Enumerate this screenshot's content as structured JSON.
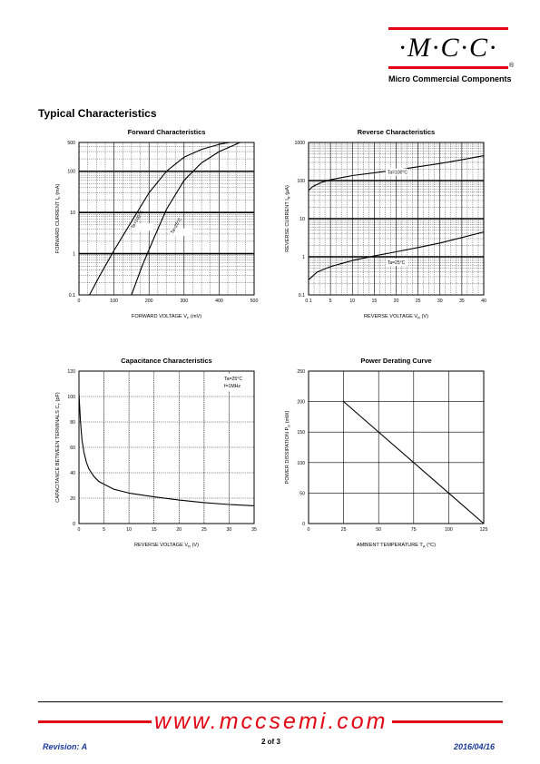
{
  "header": {
    "logo_text": "·M·C·C·",
    "logo_sub": "Micro Commercial Components",
    "reg_mark": "®",
    "accent_color": "#e30613"
  },
  "section_title": "Typical Characteristics",
  "footer": {
    "url": "www.mccsemi.com",
    "revision": "Revision: A",
    "page": "2 of 3",
    "date": "2016/04/16",
    "text_color": "#1a3a9a"
  },
  "chart_data": [
    {
      "type": "line",
      "title": "Forward    Characteristics",
      "xlabel": "FORWARD VOLTAGE",
      "xsym": "V",
      "xsub": "F",
      "xunit": "(mV)",
      "ylabel": "FORWARD CURRENT",
      "ysym": "I",
      "ysub": "F",
      "yunit": "(mA)",
      "xlim": [
        0,
        500
      ],
      "ylim": [
        0.1,
        500
      ],
      "yscale": "log",
      "xticks": [
        "0",
        "100",
        "200",
        "300",
        "400",
        "500"
      ],
      "yticks": [
        [
          "0.1",
          0.1
        ],
        [
          "1",
          1
        ],
        [
          "10",
          10
        ],
        [
          "100",
          100
        ],
        [
          "500",
          500
        ]
      ],
      "grid": true,
      "series": [
        {
          "points": [
            [
              30,
              0.1
            ],
            [
              60,
              0.3
            ],
            [
              100,
              1.2
            ],
            [
              150,
              6
            ],
            [
              200,
              30
            ],
            [
              250,
              100
            ],
            [
              300,
              220
            ],
            [
              350,
              340
            ],
            [
              400,
              450
            ],
            [
              430,
              500
            ]
          ],
          "label": "Ta=100°C",
          "label_at": [
            155,
            4
          ]
        },
        {
          "points": [
            [
              150,
              0.1
            ],
            [
              180,
              0.5
            ],
            [
              215,
              2.5
            ],
            [
              250,
              12
            ],
            [
              300,
              60
            ],
            [
              350,
              160
            ],
            [
              400,
              300
            ],
            [
              440,
              420
            ],
            [
              460,
              500
            ]
          ],
          "label": "Ta=25°C",
          "label_at": [
            268,
            3
          ]
        }
      ]
    },
    {
      "type": "line",
      "title": "Reverse    Characteristics",
      "xlabel": "REVERSE VOLTAGE",
      "xsym": "V",
      "xsub": "R",
      "xunit": "(V)",
      "ylabel": "REVERSE CURRENT",
      "ysym": "I",
      "ysub": "R",
      "yunit": "(µA)",
      "xlim": [
        0,
        40
      ],
      "ylim": [
        0.1,
        1000
      ],
      "yscale": "log",
      "xticks": [
        "0.1",
        "5",
        "10",
        "15",
        "20",
        "25",
        "30",
        "35",
        "40"
      ],
      "yticks": [
        [
          "0.1",
          0.1
        ],
        [
          "1",
          1
        ],
        [
          "10",
          10
        ],
        [
          "100",
          100
        ],
        [
          "1000",
          1000
        ]
      ],
      "grid": true,
      "series": [
        {
          "points": [
            [
              0,
              55
            ],
            [
              1,
              70
            ],
            [
              3,
              90
            ],
            [
              5,
              105
            ],
            [
              10,
              135
            ],
            [
              15,
              160
            ],
            [
              20,
              190
            ],
            [
              25,
              230
            ],
            [
              30,
              280
            ],
            [
              35,
              350
            ],
            [
              40,
              450
            ]
          ],
          "label": "Ta=100°C",
          "label_at": [
            18,
            150
          ]
        },
        {
          "points": [
            [
              0,
              0.25
            ],
            [
              2,
              0.4
            ],
            [
              5,
              0.55
            ],
            [
              10,
              0.8
            ],
            [
              15,
              1.05
            ],
            [
              20,
              1.35
            ],
            [
              25,
              1.75
            ],
            [
              30,
              2.3
            ],
            [
              35,
              3.2
            ],
            [
              40,
              4.5
            ]
          ],
          "label": "Ta=25°C",
          "label_at": [
            18,
            0.65
          ]
        }
      ]
    },
    {
      "type": "line",
      "title": "Capacitance Characteristics",
      "xlabel": "REVERSE VOLTAGE",
      "xsym": "V",
      "xsub": "R",
      "xunit": "(V)",
      "ylabel": "CAPACITANCE BETWEEN TERMINALS",
      "ysym": "C",
      "ysub": "T",
      "yunit": "(pF)",
      "xlim": [
        0,
        35
      ],
      "ylim": [
        0,
        120
      ],
      "yscale": "linear",
      "xticks": [
        "0",
        "5",
        "10",
        "15",
        "20",
        "25",
        "30",
        "35"
      ],
      "yticks": [
        [
          "0",
          0
        ],
        [
          "20",
          20
        ],
        [
          "40",
          40
        ],
        [
          "60",
          60
        ],
        [
          "80",
          80
        ],
        [
          "100",
          100
        ],
        [
          "120",
          120
        ]
      ],
      "grid": true,
      "annotations": [
        "Ta=25°C",
        "f=1MHz"
      ],
      "series": [
        {
          "points": [
            [
              0,
              102
            ],
            [
              0.3,
              80
            ],
            [
              0.6,
              66
            ],
            [
              1,
              56
            ],
            [
              1.5,
              48
            ],
            [
              2,
              43
            ],
            [
              3,
              37
            ],
            [
              4,
              33
            ],
            [
              5,
              31
            ],
            [
              7,
              27
            ],
            [
              10,
              24
            ],
            [
              15,
              21
            ],
            [
              20,
              18.5
            ],
            [
              25,
              16.5
            ],
            [
              30,
              15
            ],
            [
              35,
              14
            ]
          ]
        }
      ]
    },
    {
      "type": "line",
      "title": "Power Derating Curve",
      "xlabel": "AMBIENT TEMPERATURE",
      "xsym": "T",
      "xsub": "A",
      "xunit": "(°C)",
      "ylabel": "POWER DISSIPATION",
      "ysym": "P",
      "ysub": "D",
      "yunit": "(mW)",
      "xlim": [
        0,
        125
      ],
      "ylim": [
        0,
        250
      ],
      "yscale": "linear",
      "xticks": [
        "0",
        "25",
        "50",
        "75",
        "100",
        "125"
      ],
      "yticks": [
        [
          "0",
          0
        ],
        [
          "50",
          50
        ],
        [
          "100",
          100
        ],
        [
          "150",
          150
        ],
        [
          "200",
          200
        ],
        [
          "250",
          250
        ]
      ],
      "grid": true,
      "series": [
        {
          "points": [
            [
              25,
              200
            ],
            [
              125,
              0
            ]
          ]
        }
      ]
    }
  ]
}
